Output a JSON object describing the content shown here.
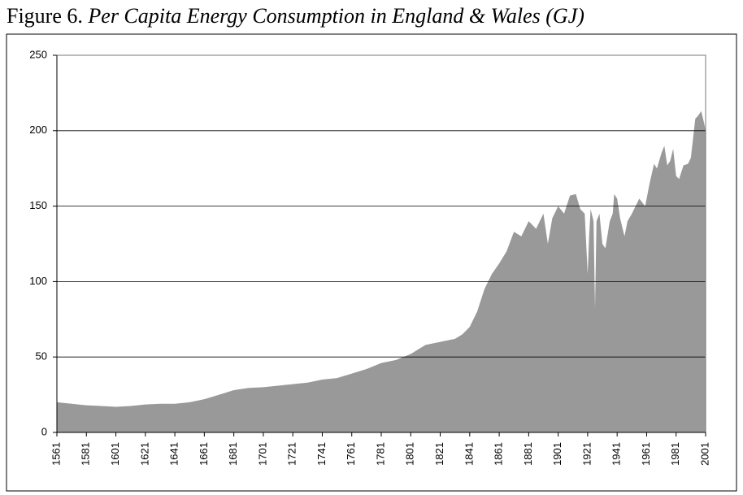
{
  "chart_data": {
    "type": "area",
    "title": "Figure 6.",
    "subtitle": "Per Capita Energy Consumption in England & Wales (GJ)",
    "x": [
      1561,
      1571,
      1581,
      1591,
      1601,
      1611,
      1621,
      1631,
      1641,
      1651,
      1661,
      1671,
      1681,
      1691,
      1701,
      1711,
      1721,
      1731,
      1741,
      1751,
      1761,
      1771,
      1781,
      1791,
      1801,
      1806,
      1811,
      1821,
      1831,
      1836,
      1841,
      1846,
      1851,
      1856,
      1861,
      1866,
      1871,
      1876,
      1881,
      1886,
      1891,
      1894,
      1897,
      1901,
      1905,
      1909,
      1913,
      1916,
      1919,
      1921,
      1922,
      1923,
      1925,
      1926,
      1927,
      1929,
      1931,
      1933,
      1936,
      1938,
      1939,
      1941,
      1943,
      1946,
      1948,
      1951,
      1956,
      1960,
      1963,
      1966,
      1968,
      1971,
      1973,
      1975,
      1977,
      1979,
      1981,
      1983,
      1986,
      1989,
      1991,
      1994,
      1996,
      1998,
      2000,
      2001
    ],
    "values": [
      20,
      19,
      18,
      17.5,
      17,
      17.5,
      18.5,
      19,
      19,
      20,
      22,
      25,
      28,
      29.5,
      30,
      31,
      32,
      33,
      35,
      36,
      39,
      42,
      46,
      48,
      52,
      55,
      58,
      60,
      62,
      65,
      70,
      80,
      95,
      105,
      112,
      120,
      133,
      130,
      140,
      135,
      145,
      125,
      142,
      150,
      145,
      157,
      158,
      148,
      145,
      105,
      130,
      148,
      140,
      82,
      140,
      145,
      125,
      122,
      140,
      145,
      158,
      155,
      142,
      130,
      140,
      145,
      155,
      150,
      165,
      178,
      175,
      185,
      190,
      177,
      180,
      188,
      170,
      168,
      177,
      178,
      182,
      208,
      210,
      213,
      205,
      200
    ],
    "color": "#999999",
    "xlim": [
      1561,
      2001
    ],
    "xticks": [
      1561,
      1581,
      1601,
      1621,
      1641,
      1661,
      1681,
      1701,
      1721,
      1741,
      1761,
      1781,
      1801,
      1821,
      1841,
      1861,
      1881,
      1901,
      1921,
      1941,
      1961,
      1981,
      2001
    ],
    "ylim": [
      0,
      250
    ],
    "yticks": [
      0,
      50,
      100,
      150,
      200,
      250
    ],
    "grid": true
  }
}
